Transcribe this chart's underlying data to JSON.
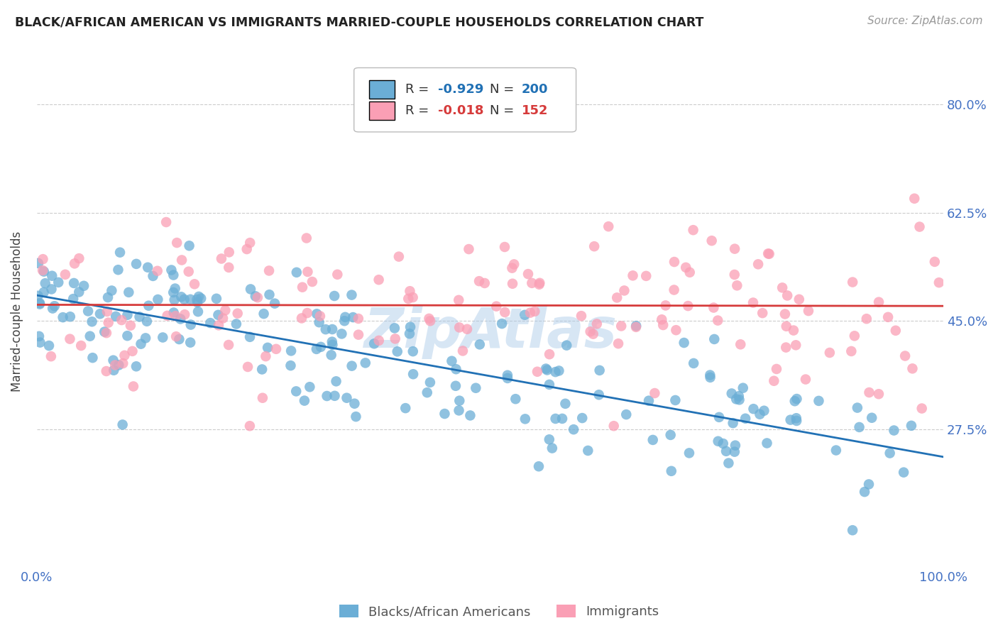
{
  "title": "BLACK/AFRICAN AMERICAN VS IMMIGRANTS MARRIED-COUPLE HOUSEHOLDS CORRELATION CHART",
  "source": "Source: ZipAtlas.com",
  "ylabel": "Married-couple Households",
  "blue_R": -0.929,
  "blue_N": 200,
  "pink_R": -0.018,
  "pink_N": 152,
  "blue_color": "#6baed6",
  "pink_color": "#fa9fb5",
  "blue_line_color": "#2171b5",
  "pink_line_color": "#d63b3b",
  "bg_color": "#ffffff",
  "grid_color": "#cccccc",
  "title_color": "#222222",
  "label_color": "#4472c4",
  "xlim": [
    0,
    1.0
  ],
  "ylim": [
    0.05,
    0.88
  ],
  "yticks": [
    0.275,
    0.45,
    0.625,
    0.8
  ],
  "ytick_labels": [
    "27.5%",
    "45.0%",
    "62.5%",
    "80.0%"
  ],
  "xtick_labels": [
    "0.0%",
    "100.0%"
  ],
  "watermark": "ZipAtlas",
  "seed_blue": 42,
  "seed_pink": 99
}
